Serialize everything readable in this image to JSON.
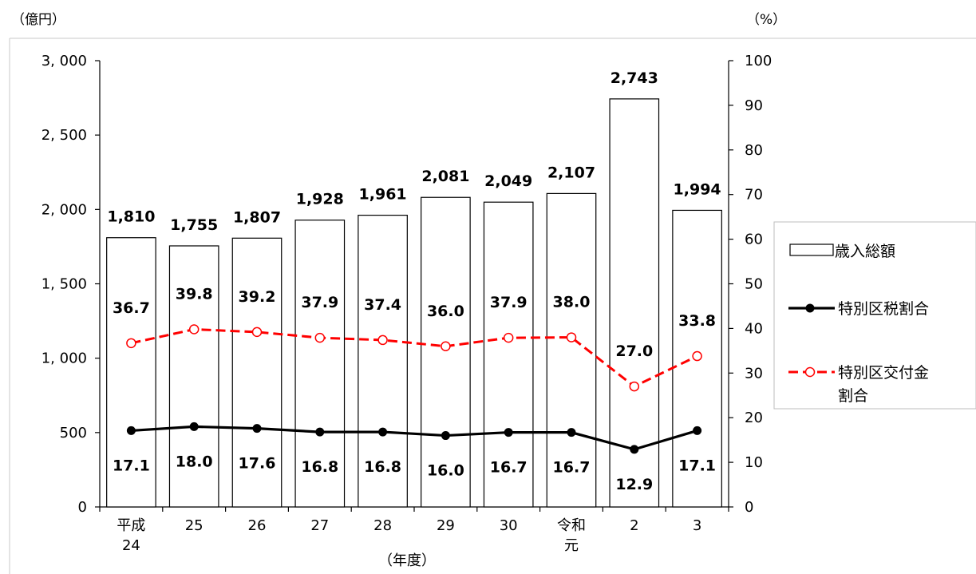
{
  "chart_data": {
    "type": "bar",
    "y_left_unit": "（億円）",
    "y_right_unit": "（%）",
    "xlabel": "（年度）",
    "categories": [
      [
        "平成",
        "24"
      ],
      [
        "25"
      ],
      [
        "26"
      ],
      [
        "27"
      ],
      [
        "28"
      ],
      [
        "29"
      ],
      [
        "30"
      ],
      [
        "令和",
        "元"
      ],
      [
        "2"
      ],
      [
        "3"
      ]
    ],
    "y_left_ticks": [
      "0",
      "500",
      "1, 000",
      "1, 500",
      "2, 000",
      "2, 500",
      "3, 000"
    ],
    "y_right_ticks": [
      "0",
      "10",
      "20",
      "30",
      "40",
      "50",
      "60",
      "70",
      "80",
      "90",
      "100"
    ],
    "y_left_lim": [
      0,
      3000
    ],
    "y_right_lim": [
      0,
      100
    ],
    "series": [
      {
        "name": "歳入総額",
        "kind": "bar",
        "axis": "left",
        "values": [
          1810,
          1755,
          1807,
          1928,
          1961,
          2081,
          2049,
          2107,
          2743,
          1994
        ],
        "labels": [
          "1,810",
          "1,755",
          "1,807",
          "1,928",
          "1,961",
          "2,081",
          "2,049",
          "2,107",
          "2,743",
          "1,994"
        ]
      },
      {
        "name": "特別区税割合",
        "kind": "line",
        "axis": "right",
        "color": "#000000",
        "marker": "filled-circle",
        "values": [
          17.1,
          18.0,
          17.6,
          16.8,
          16.8,
          16.0,
          16.7,
          16.7,
          12.9,
          17.1
        ],
        "labels": [
          "17.1",
          "18.0",
          "17.6",
          "16.8",
          "16.8",
          "16.0",
          "16.7",
          "16.7",
          "12.9",
          "17.1"
        ]
      },
      {
        "name": "特別区交付金割合",
        "legend_lines": [
          "特別区交付金",
          "割合"
        ],
        "kind": "line",
        "axis": "right",
        "color": "#ff0000",
        "marker": "open-circle",
        "dashed": true,
        "values": [
          36.7,
          39.8,
          39.2,
          37.9,
          37.4,
          36.0,
          37.9,
          38.0,
          27.0,
          33.8
        ],
        "labels": [
          "36.7",
          "39.8",
          "39.2",
          "37.9",
          "37.4",
          "36.0",
          "37.9",
          "38.0",
          "27.0",
          "33.8"
        ]
      }
    ],
    "grid": false,
    "legend_position": "right"
  }
}
